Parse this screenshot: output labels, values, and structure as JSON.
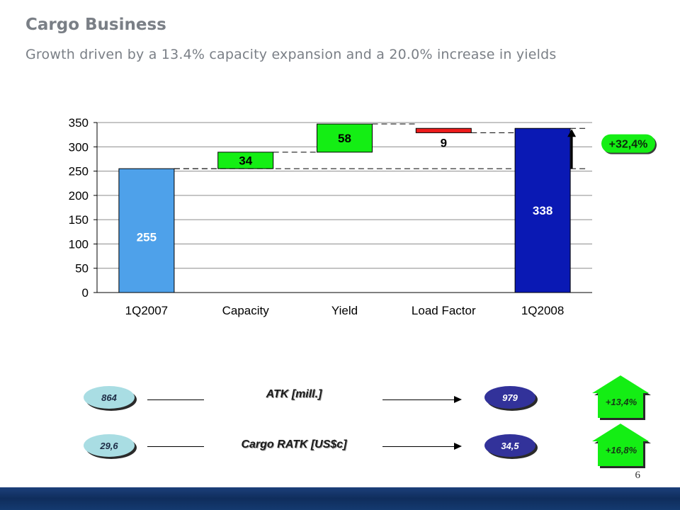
{
  "header": {
    "title": "Cargo Business",
    "subtitle": "Growth driven by a 13.4% capacity expansion and a 20.0% increase in yields"
  },
  "chart_data": {
    "type": "bar",
    "subtype": "waterfall",
    "categories": [
      "1Q2007",
      "Capacity",
      "Yield",
      "Load Factor",
      "1Q2008"
    ],
    "bars": [
      {
        "category": "1Q2007",
        "base": 0,
        "value": 255,
        "label": "255",
        "kind": "total",
        "color": "#4ea1ea"
      },
      {
        "category": "Capacity",
        "base": 255,
        "value": 34,
        "label": "34",
        "kind": "increase",
        "color": "#14ee14"
      },
      {
        "category": "Yield",
        "base": 289,
        "value": 58,
        "label": "58",
        "kind": "increase",
        "color": "#14ee14"
      },
      {
        "category": "Load Factor",
        "base": 338,
        "value": 9,
        "label": "9",
        "kind": "decrease",
        "color": "#ee1c1c"
      },
      {
        "category": "1Q2008",
        "base": 0,
        "value": 338,
        "label": "338",
        "kind": "total",
        "color": "#0a19b4"
      }
    ],
    "ylim": [
      0,
      350
    ],
    "yticks": [
      0,
      50,
      100,
      150,
      200,
      250,
      300,
      350
    ],
    "grid": true,
    "annotation": {
      "text": "+32,4%",
      "from": 255,
      "to": 338,
      "color": "#14ee14"
    }
  },
  "metrics": [
    {
      "label": "ATK [mill.]",
      "start": "864",
      "end": "979",
      "growth": "+13,4%"
    },
    {
      "label": "Cargo RATK [US$c]",
      "start": "29,6",
      "end": "34,5",
      "growth": "+16,8%"
    }
  ],
  "footer": {
    "page_number": "6"
  },
  "colors": {
    "title_gray": "#7a7f86",
    "start_ellipse": "#a9dde3",
    "end_ellipse": "#32329a",
    "growth_green": "#14ee14",
    "footer_band": "#1c3f7a"
  }
}
